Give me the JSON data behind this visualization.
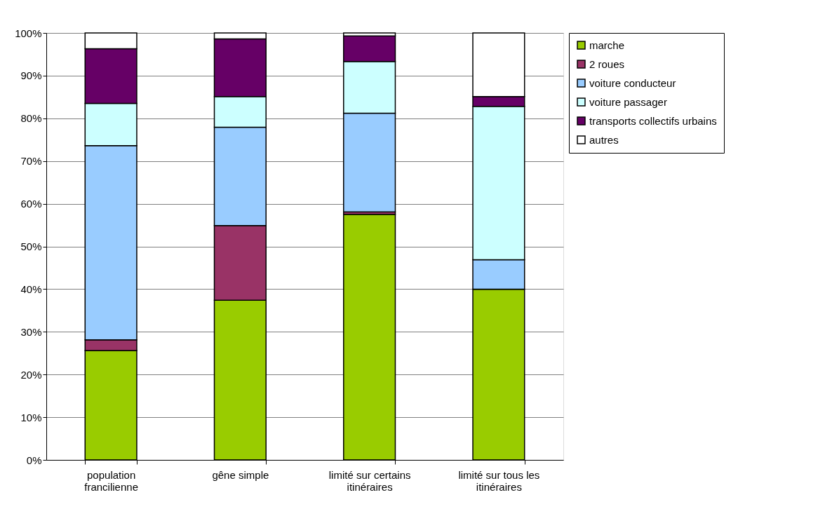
{
  "chart_data": {
    "type": "bar",
    "stacked": true,
    "categories": [
      "population francilienne",
      "gêne simple",
      "limité sur certains itinéraires",
      "limité sur tous les itinéraires"
    ],
    "series": [
      {
        "name": "marche",
        "color": "#99cc00",
        "values": [
          25.6,
          37.4,
          57.5,
          40.0
        ]
      },
      {
        "name": "2 roues",
        "color": "#993366",
        "values": [
          2.5,
          17.5,
          0.6,
          0
        ]
      },
      {
        "name": "voiture conducteur",
        "color": "#99ccff",
        "values": [
          45.5,
          23.0,
          23.1,
          6.9
        ]
      },
      {
        "name": " voiture passager",
        "color": "#ccffff",
        "values": [
          9.9,
          7.2,
          12.1,
          35.9
        ]
      },
      {
        "name": "transports collectifs urbains",
        "color": "#660066",
        "values": [
          12.8,
          13.5,
          6.0,
          2.3
        ]
      },
      {
        "name": "autres",
        "color": "#ffffff",
        "values": [
          3.7,
          1.4,
          0.7,
          14.9
        ]
      }
    ],
    "ylim": [
      0,
      100
    ],
    "yticks": [
      {
        "value": 0,
        "label": "0%"
      },
      {
        "value": 10,
        "label": "10%"
      },
      {
        "value": 20,
        "label": "20%"
      },
      {
        "value": 30,
        "label": "30%"
      },
      {
        "value": 40,
        "label": "40%"
      },
      {
        "value": 50,
        "label": "50%"
      },
      {
        "value": 60,
        "label": "60%"
      },
      {
        "value": 70,
        "label": "70%"
      },
      {
        "value": 80,
        "label": "80%"
      },
      {
        "value": 90,
        "label": "90%"
      },
      {
        "value": 100,
        "label": "100%"
      }
    ],
    "grid": "y",
    "legend": "right"
  }
}
